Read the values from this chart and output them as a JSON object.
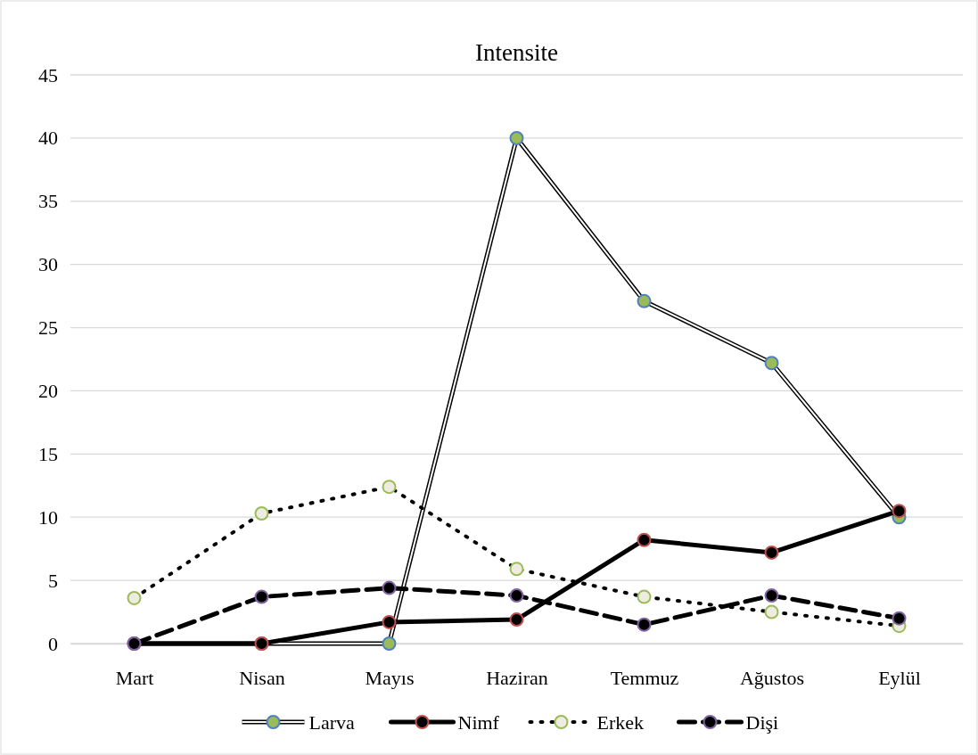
{
  "chart_data": {
    "type": "line",
    "title": "Intensite",
    "categories": [
      "Mart",
      "Nisan",
      "Mayıs",
      "Haziran",
      "Temmuz",
      "Ağustos",
      "Eylül"
    ],
    "series": [
      {
        "name": "Larva",
        "color": "#4f81bd",
        "line_style": "solid",
        "values": [
          0,
          0,
          0,
          40,
          27.1,
          22.2,
          10
        ]
      },
      {
        "name": "Nimf",
        "color": "#c0504d",
        "line_style": "solid",
        "values": [
          0,
          0,
          1.7,
          1.9,
          8.2,
          7.2,
          10.5
        ]
      },
      {
        "name": "Erkek",
        "color": "#9bbb59",
        "line_style": "dotted",
        "values": [
          3.6,
          10.3,
          12.4,
          5.9,
          3.7,
          2.5,
          1.4
        ]
      },
      {
        "name": "Dişi",
        "color": "#8064a2",
        "line_style": "dashed",
        "values": [
          0,
          3.7,
          4.4,
          3.8,
          1.5,
          3.8,
          2
        ]
      }
    ],
    "ylim": [
      0,
      45
    ],
    "yticks": [
      0,
      5,
      10,
      15,
      20,
      25,
      30,
      35,
      40,
      45
    ],
    "grid": "y",
    "legend": "bottom",
    "marker": "circle"
  }
}
